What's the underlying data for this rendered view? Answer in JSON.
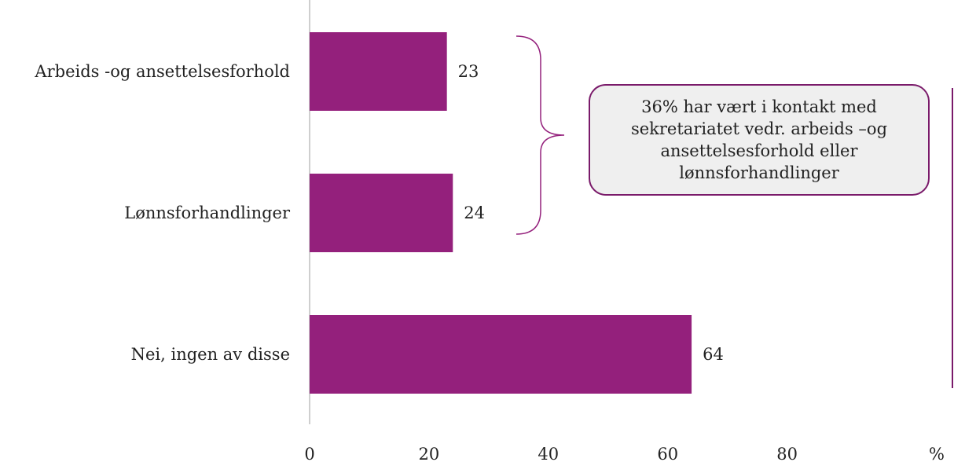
{
  "chart_data": {
    "type": "bar",
    "orientation": "horizontal",
    "categories": [
      "Arbeids -og ansettelsesforhold",
      "Lønnsforhandlinger",
      "Nei, ingen av disse"
    ],
    "values": [
      23,
      24,
      64
    ],
    "value_labels": [
      "23",
      "24",
      "64"
    ],
    "xlim": [
      0,
      80
    ],
    "x_ticks": [
      "0",
      "20",
      "40",
      "60",
      "80"
    ],
    "unit_label": "%",
    "bar_color": "#94207c",
    "grid": false,
    "annotation": {
      "text": "36% har vært i kontakt med sekretariatet vedr. arbeids –og ansettelsesforhold eller lønnsforhandlinger",
      "border_color": "#7a1a6a",
      "background": "#efefef",
      "brackets": [
        "Arbeids -og ansettelsesforhold",
        "Lønnsforhandlinger"
      ]
    }
  }
}
